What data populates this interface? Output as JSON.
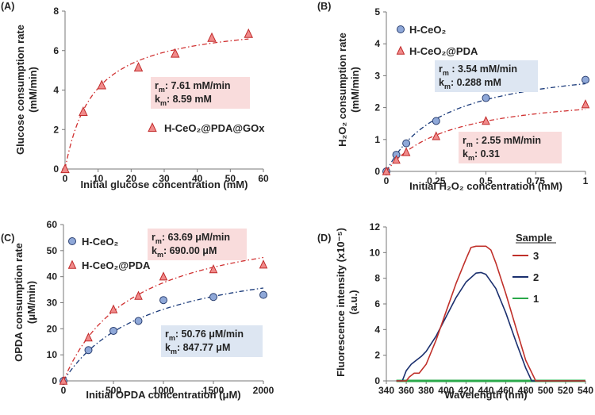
{
  "chart_data": [
    {
      "panel": "(A)",
      "type": "scatter",
      "xlabel": "Initial glucose concentration (mM)",
      "ylabel": [
        "Glucose consumption rate",
        "(mM/min)"
      ],
      "xlim": [
        0,
        60
      ],
      "ylim": [
        0,
        8
      ],
      "xticks": [
        "0",
        "10",
        "20",
        "30",
        "40",
        "50",
        "60"
      ],
      "yticks": [
        "0",
        "2",
        "4",
        "6",
        "8"
      ],
      "series": [
        {
          "name": "H-CeO₂@PDA@GOx",
          "marker": "triangle",
          "color": "#e05050",
          "x": [
            0,
            5.5,
            11.1,
            22.2,
            33.3,
            44.4,
            55.5
          ],
          "y": [
            0,
            2.9,
            4.25,
            5.15,
            5.85,
            6.65,
            6.85
          ],
          "fit": {
            "vmax": 7.61,
            "km": 8.59
          }
        }
      ],
      "annotation": {
        "lines": [
          {
            "pre": "r",
            "sub": "m",
            "post": ": 7.61 mM/min"
          },
          {
            "pre": "k",
            "sub": "m",
            "post": ": 8.59 mM"
          }
        ]
      }
    },
    {
      "panel": "(B)",
      "type": "scatter",
      "xlabel": "Initial H₂O₂ concentration (mM)",
      "ylabel": [
        "H₂O₂ consumption rate",
        "(mM/min)"
      ],
      "xlim": [
        0,
        1
      ],
      "ylim": [
        0,
        5
      ],
      "xticks": [
        "0",
        "0.25",
        "0.5",
        "0.75",
        "1"
      ],
      "yticks": [
        "0",
        "1",
        "2",
        "3",
        "4",
        "5"
      ],
      "series": [
        {
          "name": "H-CeO₂",
          "marker": "circle",
          "color": "#1a3a7a",
          "x": [
            0,
            0.05,
            0.1,
            0.25,
            0.5,
            1.0
          ],
          "y": [
            0,
            0.52,
            0.88,
            1.58,
            2.3,
            2.87
          ],
          "fit": {
            "vmax": 3.54,
            "km": 0.288
          }
        },
        {
          "name": "H-CeO₂@PDA",
          "marker": "triangle",
          "color": "#e05050",
          "x": [
            0,
            0.05,
            0.1,
            0.25,
            0.5,
            1.0
          ],
          "y": [
            0,
            0.36,
            0.6,
            1.1,
            1.58,
            2.1
          ],
          "fit": {
            "vmax": 2.55,
            "km": 0.31
          }
        }
      ],
      "annotations": [
        {
          "lines": [
            {
              "pre": "r",
              "sub": "m",
              "post": " : 3.54 mM/min"
            },
            {
              "pre": "k",
              "sub": "m",
              "post": ": 0.288 mM"
            }
          ]
        },
        {
          "lines": [
            {
              "pre": "r",
              "sub": "m",
              "post": " : 2.55 mM/min"
            },
            {
              "pre": "k",
              "sub": "m",
              "post": ": 0.31"
            }
          ]
        }
      ]
    },
    {
      "panel": "(C)",
      "type": "scatter",
      "xlabel": "Initial OPDA concentration (μM)",
      "ylabel": [
        "OPDA consumption rate",
        "(μM/min)"
      ],
      "xlim": [
        0,
        2000
      ],
      "ylim": [
        0,
        60
      ],
      "xticks": [
        "0",
        "500",
        "1000",
        "1500",
        "2000"
      ],
      "yticks": [
        "0",
        "10",
        "20",
        "30",
        "40",
        "50",
        "60"
      ],
      "series": [
        {
          "name": "H-CeO₂",
          "marker": "circle",
          "color": "#1a3a7a",
          "x": [
            0,
            250,
            500,
            750,
            1000,
            1500,
            2000
          ],
          "y": [
            0,
            11.8,
            19.2,
            23.0,
            31.0,
            32.2,
            33.0
          ],
          "fit": {
            "vmax": 50.76,
            "km": 847.77
          }
        },
        {
          "name": "H-CeO₂@PDA",
          "marker": "triangle",
          "color": "#e05050",
          "x": [
            0,
            250,
            500,
            750,
            1000,
            1500,
            2000
          ],
          "y": [
            0,
            16.6,
            27.4,
            32.6,
            40.0,
            42.8,
            44.6
          ],
          "fit": {
            "vmax": 63.69,
            "km": 690.0
          }
        }
      ],
      "annotations": [
        {
          "lines": [
            {
              "pre": "r",
              "sub": "m",
              "post": ": 63.69 μM/min"
            },
            {
              "pre": "k",
              "sub": "m",
              "post": ": 690.00 μM"
            }
          ]
        },
        {
          "lines": [
            {
              "pre": "r",
              "sub": "m",
              "post": ": 50.76 μM/min"
            },
            {
              "pre": "k",
              "sub": "m",
              "post": ": 847.77 μM"
            }
          ]
        }
      ]
    },
    {
      "panel": "(D)",
      "type": "line",
      "xlabel": "Wavelength (nm)",
      "ylabel": [
        "Fluorescence intensity (x10⁻⁵)",
        "(a.u.)"
      ],
      "xlim": [
        340,
        540
      ],
      "ylim": [
        0,
        12
      ],
      "xticks": [
        "340",
        "360",
        "380",
        "400",
        "420",
        "440",
        "460",
        "480",
        "500",
        "520",
        "540"
      ],
      "yticks": [
        "0",
        "2",
        "4",
        "6",
        "8",
        "10",
        "12"
      ],
      "legend_title": "Sample",
      "series": [
        {
          "name": "3",
          "color": "#c0302a",
          "x": [
            350,
            360,
            363,
            368,
            373,
            380,
            390,
            400,
            410,
            420,
            425,
            430,
            440,
            445,
            450,
            460,
            470,
            480,
            490,
            540
          ],
          "y": [
            0,
            0,
            0.3,
            0.6,
            0.6,
            1.3,
            3.2,
            5.4,
            7.6,
            9.5,
            10.4,
            10.5,
            10.5,
            10.2,
            9.2,
            6.8,
            4.2,
            1.6,
            0,
            0
          ]
        },
        {
          "name": "2",
          "color": "#1a2f6e",
          "x": [
            350,
            356,
            360,
            365,
            370,
            375,
            380,
            390,
            400,
            410,
            420,
            430,
            435,
            440,
            450,
            460,
            470,
            480,
            486,
            540
          ],
          "y": [
            0,
            0,
            0.8,
            1.3,
            1.6,
            1.9,
            2.3,
            3.5,
            5.0,
            6.5,
            7.7,
            8.4,
            8.45,
            8.3,
            7.2,
            5.3,
            3.1,
            1.0,
            0,
            0
          ]
        },
        {
          "name": "1",
          "color": "#2aa84a",
          "x": [
            350,
            540
          ],
          "y": [
            0,
            0
          ]
        }
      ]
    }
  ]
}
